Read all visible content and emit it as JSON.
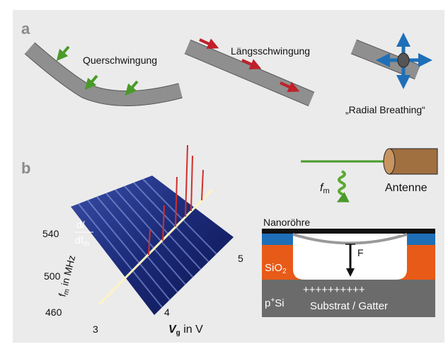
{
  "panel_a": {
    "label": "a",
    "modes": [
      "Querschwingung",
      "Längsschwingung",
      "„Radial Breathing“"
    ]
  },
  "panel_b": {
    "label": "b",
    "plot": {
      "y_label": {
        "symbol": "f",
        "sub": "m",
        "unit": " in MHz"
      },
      "y_ticks": [
        "540",
        "500",
        "460"
      ],
      "x_label": {
        "symbol": "V",
        "sub": "g",
        "unit": " in V"
      },
      "x_ticks": [
        "3",
        "4",
        "5"
      ],
      "z_label": {
        "top": "d/",
        "bottom": "df",
        "sub": "m"
      }
    },
    "antenna": {
      "symbol": "f",
      "sub": "m",
      "label": "Antenne"
    },
    "device": {
      "tube": "Nanoröhre",
      "charges_top": "−−−−−−−−−−−−−−−−−−−−−−",
      "force": "F",
      "oxide": "SiO",
      "oxide_sub": "2",
      "substrate": "p",
      "substrate_sup": "+",
      "substrate_rest": "Si",
      "charges_bottom": "++++++++++",
      "gate": "Substrat / Gatter"
    }
  }
}
